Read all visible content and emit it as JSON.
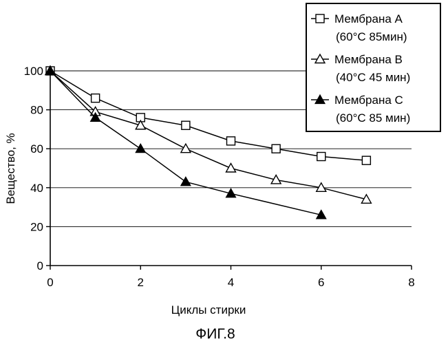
{
  "chart_data": {
    "type": "line",
    "caption": "ФИГ.8",
    "xlabel": "Циклы стирки",
    "ylabel": "Вещество, %",
    "xlim": [
      0,
      8
    ],
    "ylim": [
      0,
      100
    ],
    "x_ticks": [
      0,
      2,
      4,
      6,
      8
    ],
    "y_ticks": [
      0,
      20,
      40,
      60,
      80,
      100
    ],
    "grid": "horizontal",
    "legend_position": "top-right",
    "series": [
      {
        "legend_line1": "Мембрана А",
        "legend_line2": "(60°С 85мин)",
        "marker": "open-square",
        "x": [
          0,
          1,
          2,
          3,
          4,
          5,
          6,
          7
        ],
        "y": [
          100,
          86,
          76,
          72,
          64,
          60,
          56,
          54
        ]
      },
      {
        "legend_line1": "Мембрана В",
        "legend_line2": "(40°С 45 мин)",
        "marker": "open-triangle",
        "x": [
          0,
          1,
          2,
          3,
          4,
          5,
          6,
          7
        ],
        "y": [
          100,
          79,
          72,
          60,
          50,
          44,
          40,
          34
        ]
      },
      {
        "legend_line1": "Мембрана С",
        "legend_line2": "(60°С 85 мин)",
        "marker": "filled-triangle",
        "x": [
          0,
          1,
          2,
          3,
          4,
          6
        ],
        "y": [
          100,
          76,
          60,
          43,
          37,
          26
        ]
      }
    ]
  }
}
